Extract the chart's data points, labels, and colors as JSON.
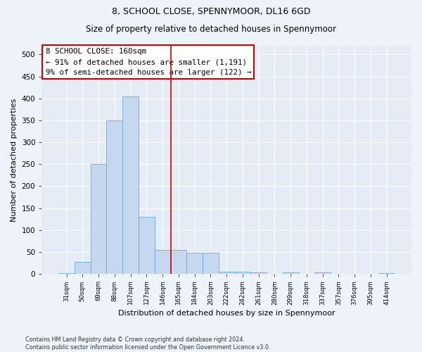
{
  "title": "8, SCHOOL CLOSE, SPENNYMOOR, DL16 6GD",
  "subtitle": "Size of property relative to detached houses in Spennymoor",
  "xlabel": "Distribution of detached houses by size in Spennymoor",
  "ylabel": "Number of detached properties",
  "footer_line1": "Contains HM Land Registry data © Crown copyright and database right 2024.",
  "footer_line2": "Contains public sector information licensed under the Open Government Licence v3.0.",
  "bar_color": "#c5d8ef",
  "bar_edge_color": "#5a9fd4",
  "vline_color": "#cc0000",
  "vline_x_idx": 7,
  "annotation_text": "8 SCHOOL CLOSE: 160sqm\n← 91% of detached houses are smaller (1,191)\n9% of semi-detached houses are larger (122) →",
  "annotation_box_color": "#cc0000",
  "categories": [
    "31sqm",
    "50sqm",
    "69sqm",
    "88sqm",
    "107sqm",
    "127sqm",
    "146sqm",
    "165sqm",
    "184sqm",
    "203sqm",
    "222sqm",
    "242sqm",
    "261sqm",
    "280sqm",
    "299sqm",
    "318sqm",
    "337sqm",
    "357sqm",
    "376sqm",
    "395sqm",
    "414sqm"
  ],
  "values": [
    2,
    28,
    250,
    350,
    405,
    130,
    55,
    55,
    48,
    48,
    5,
    5,
    3,
    1,
    3,
    1,
    3,
    1,
    1,
    1,
    2
  ],
  "ylim": [
    0,
    520
  ],
  "yticks": [
    0,
    50,
    100,
    150,
    200,
    250,
    300,
    350,
    400,
    450,
    500
  ],
  "background_color": "#eef2f9",
  "plot_bg_color": "#e5ecf6",
  "title_fontsize": 9,
  "subtitle_fontsize": 8.5
}
